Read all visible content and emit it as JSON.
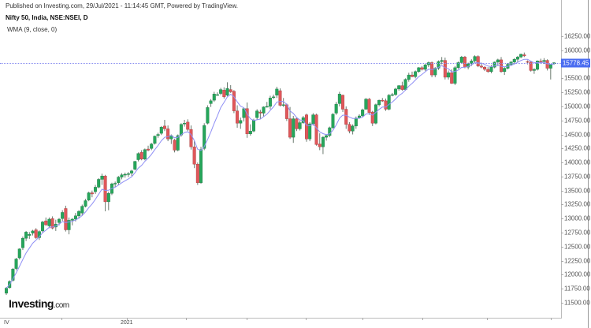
{
  "header": {
    "published": "Published on Investing.com, 29/Jul/2021 - 11:14:45 GMT, Powered by TradingView.",
    "symbol": "Nifty 50, India, NSE:NSEI, D",
    "indicator": "WMA (9, close, 0)"
  },
  "logo": {
    "main": "Investing",
    "suffix": ".com"
  },
  "colors": {
    "up": "#26a65b",
    "down": "#e0575a",
    "wma": "#8f8ff5",
    "price_tag": "#4a6cf0"
  },
  "chart_data": {
    "type": "candlestick",
    "title": "Nifty 50, India, NSE:NSEI, D",
    "indicator": "WMA (9, close, 0)",
    "last_price": 15778.45,
    "ylim": [
      11400,
      16400
    ],
    "y_ticks": [
      16250,
      16000,
      15750,
      15500,
      15250,
      15000,
      14750,
      14500,
      14250,
      14000,
      13750,
      13500,
      13250,
      13000,
      12750,
      12500,
      12250,
      12000,
      11750,
      11500
    ],
    "y_tick_labels": [
      "16250.00",
      "16000.00",
      "15750.00",
      "15500.00",
      "15250.00",
      "15000.00",
      "14750.00",
      "14500.00",
      "14250.00",
      "14000.00",
      "13750.00",
      "13500.00",
      "13250.00",
      "13000.00",
      "12750.00",
      "12500.00",
      "12250.00",
      "12000.00",
      "11750.00",
      "11500.00"
    ],
    "x_labels": [
      {
        "label": "IV",
        "x": 8
      },
      {
        "label": "2021",
        "x": 153
      }
    ],
    "x_ticks": [
      78,
      161,
      236,
      313,
      388,
      460,
      536,
      618,
      699
    ],
    "candles": [
      [
        11670,
        11780,
        11640,
        11760
      ],
      [
        11770,
        11900,
        11750,
        11880
      ],
      [
        11900,
        12120,
        11880,
        12100
      ],
      [
        12110,
        12300,
        12080,
        12280
      ],
      [
        12300,
        12470,
        12270,
        12460
      ],
      [
        12480,
        12680,
        12440,
        12650
      ],
      [
        12650,
        12780,
        12600,
        12760
      ],
      [
        12700,
        12760,
        12640,
        12720
      ],
      [
        12740,
        12800,
        12700,
        12780
      ],
      [
        12800,
        12830,
        12640,
        12660
      ],
      [
        12660,
        12790,
        12620,
        12770
      ],
      [
        12780,
        12960,
        12750,
        12940
      ],
      [
        12960,
        13020,
        12870,
        12890
      ],
      [
        12870,
        13020,
        12830,
        12990
      ],
      [
        13000,
        13040,
        12810,
        12830
      ],
      [
        12850,
        12980,
        12780,
        12900
      ],
      [
        12930,
        13010,
        12880,
        12990
      ],
      [
        13000,
        13150,
        12960,
        13110
      ],
      [
        13180,
        13230,
        12770,
        12800
      ],
      [
        12800,
        13020,
        12720,
        12970
      ],
      [
        12970,
        13010,
        12880,
        12990
      ],
      [
        12990,
        13100,
        12950,
        13050
      ],
      [
        13050,
        13150,
        13000,
        13130
      ],
      [
        13100,
        13250,
        13050,
        13220
      ],
      [
        13220,
        13350,
        13200,
        13320
      ],
      [
        13330,
        13480,
        13310,
        13460
      ],
      [
        13460,
        13500,
        13380,
        13440
      ],
      [
        13480,
        13600,
        13440,
        13560
      ],
      [
        13560,
        13720,
        13540,
        13700
      ],
      [
        13700,
        13800,
        13600,
        13760
      ],
      [
        13760,
        13780,
        13130,
        13300
      ],
      [
        13300,
        13480,
        13150,
        13450
      ],
      [
        13450,
        13640,
        13420,
        13620
      ],
      [
        13620,
        13660,
        13560,
        13630
      ],
      [
        13640,
        13760,
        13600,
        13740
      ],
      [
        13740,
        13810,
        13700,
        13780
      ],
      [
        13780,
        13820,
        13730,
        13790
      ],
      [
        13790,
        13830,
        13740,
        13800
      ],
      [
        13810,
        13870,
        13760,
        13850
      ],
      [
        13880,
        14030,
        13860,
        14020
      ],
      [
        14050,
        14180,
        14020,
        14160
      ],
      [
        14180,
        14220,
        14040,
        14060
      ],
      [
        14060,
        14250,
        14040,
        14230
      ],
      [
        14240,
        14300,
        14200,
        14220
      ],
      [
        14250,
        14350,
        14220,
        14330
      ],
      [
        14340,
        14480,
        14320,
        14470
      ],
      [
        14480,
        14530,
        14440,
        14500
      ],
      [
        14520,
        14650,
        14490,
        14630
      ],
      [
        14650,
        14760,
        14560,
        14600
      ],
      [
        14600,
        14660,
        14380,
        14420
      ],
      [
        14420,
        14500,
        14330,
        14480
      ],
      [
        14400,
        14420,
        14180,
        14220
      ],
      [
        14220,
        14500,
        14200,
        14480
      ],
      [
        14490,
        14700,
        14460,
        14680
      ],
      [
        14690,
        14760,
        14640,
        14700
      ],
      [
        14720,
        14770,
        14560,
        14590
      ],
      [
        14590,
        14660,
        14230,
        14280
      ],
      [
        14280,
        14380,
        13900,
        13970
      ],
      [
        13970,
        14000,
        13600,
        13640
      ],
      [
        13640,
        14280,
        13620,
        14230
      ],
      [
        14250,
        14700,
        14220,
        14660
      ],
      [
        14700,
        15020,
        14680,
        14980
      ],
      [
        15050,
        15130,
        14990,
        15100
      ],
      [
        15110,
        15260,
        15080,
        15220
      ],
      [
        15200,
        15250,
        15190,
        15210
      ],
      [
        15230,
        15330,
        15200,
        15300
      ],
      [
        15290,
        15340,
        15140,
        15170
      ],
      [
        15200,
        15430,
        15180,
        15320
      ],
      [
        15300,
        15380,
        15240,
        15260
      ],
      [
        15270,
        15290,
        14880,
        14920
      ],
      [
        14920,
        15020,
        14620,
        14700
      ],
      [
        14700,
        14800,
        14600,
        14750
      ],
      [
        14800,
        14980,
        14730,
        14960
      ],
      [
        14960,
        15070,
        14440,
        14510
      ],
      [
        14510,
        14680,
        14480,
        14560
      ],
      [
        14560,
        14780,
        14540,
        14750
      ],
      [
        14800,
        14950,
        14760,
        14920
      ],
      [
        14900,
        14940,
        14780,
        14880
      ],
      [
        14880,
        15000,
        14820,
        14990
      ],
      [
        14990,
        15080,
        14980,
        15000
      ],
      [
        15000,
        15190,
        14950,
        15150
      ],
      [
        15160,
        15210,
        15130,
        15170
      ],
      [
        15200,
        15350,
        15150,
        15310
      ],
      [
        15280,
        15320,
        15000,
        15020
      ],
      [
        15020,
        15150,
        14990,
        15030
      ],
      [
        15030,
        15050,
        14740,
        14780
      ],
      [
        14780,
        14990,
        14420,
        14450
      ],
      [
        14450,
        14830,
        14350,
        14780
      ],
      [
        14780,
        14800,
        14560,
        14600
      ],
      [
        14600,
        14750,
        14570,
        14710
      ],
      [
        14710,
        14830,
        14690,
        14800
      ],
      [
        14850,
        14870,
        14370,
        14420
      ],
      [
        14420,
        14720,
        14380,
        14690
      ],
      [
        14690,
        14880,
        14660,
        14850
      ],
      [
        14850,
        14870,
        14300,
        14320
      ],
      [
        14330,
        14520,
        14220,
        14280
      ],
      [
        14280,
        14470,
        14150,
        14450
      ],
      [
        14450,
        14500,
        14390,
        14480
      ],
      [
        14480,
        14640,
        14450,
        14620
      ],
      [
        14620,
        14880,
        14600,
        14860
      ],
      [
        14880,
        15080,
        14850,
        15040
      ],
      [
        15050,
        15260,
        15000,
        15220
      ],
      [
        15200,
        15210,
        14900,
        14950
      ],
      [
        14950,
        15000,
        14600,
        14680
      ],
      [
        14680,
        14720,
        14520,
        14560
      ],
      [
        14560,
        14680,
        14500,
        14650
      ],
      [
        14650,
        14820,
        14600,
        14790
      ],
      [
        14800,
        14860,
        14780,
        14830
      ],
      [
        14830,
        14960,
        14820,
        14940
      ],
      [
        14950,
        15150,
        14940,
        15130
      ],
      [
        15130,
        15150,
        14850,
        14890
      ],
      [
        14900,
        14920,
        14650,
        14700
      ],
      [
        14700,
        15050,
        14680,
        15030
      ],
      [
        15030,
        15120,
        15000,
        15110
      ],
      [
        15110,
        15150,
        15080,
        15100
      ],
      [
        15100,
        15140,
        14920,
        14950
      ],
      [
        14950,
        15220,
        14930,
        15200
      ],
      [
        15200,
        15240,
        15180,
        15210
      ],
      [
        15210,
        15330,
        15190,
        15310
      ],
      [
        15310,
        15380,
        15280,
        15370
      ],
      [
        15370,
        15440,
        15280,
        15300
      ],
      [
        15300,
        15500,
        15280,
        15480
      ],
      [
        15480,
        15600,
        15440,
        15560
      ],
      [
        15560,
        15620,
        15520,
        15530
      ],
      [
        15530,
        15640,
        15500,
        15620
      ],
      [
        15620,
        15700,
        15600,
        15690
      ],
      [
        15690,
        15720,
        15640,
        15660
      ],
      [
        15660,
        15760,
        15630,
        15740
      ],
      [
        15740,
        15800,
        15700,
        15780
      ],
      [
        15780,
        15800,
        15520,
        15560
      ],
      [
        15560,
        15700,
        15520,
        15680
      ],
      [
        15680,
        15820,
        15650,
        15800
      ],
      [
        15800,
        15880,
        15750,
        15820
      ],
      [
        15820,
        15870,
        15480,
        15520
      ],
      [
        15520,
        15640,
        15480,
        15600
      ],
      [
        15600,
        15660,
        15400,
        15410
      ],
      [
        15410,
        15720,
        15380,
        15690
      ],
      [
        15690,
        15800,
        15670,
        15780
      ],
      [
        15780,
        15900,
        15760,
        15880
      ],
      [
        15880,
        15900,
        15680,
        15700
      ],
      [
        15700,
        15780,
        15660,
        15760
      ],
      [
        15760,
        15840,
        15720,
        15810
      ],
      [
        15810,
        15910,
        15780,
        15890
      ],
      [
        15890,
        15910,
        15700,
        15720
      ],
      [
        15720,
        15780,
        15680,
        15700
      ],
      [
        15700,
        15720,
        15630,
        15660
      ],
      [
        15660,
        15700,
        15600,
        15620
      ],
      [
        15620,
        15740,
        15590,
        15700
      ],
      [
        15700,
        15800,
        15680,
        15790
      ],
      [
        15790,
        15850,
        15720,
        15830
      ],
      [
        15830,
        15880,
        15600,
        15620
      ],
      [
        15620,
        15700,
        15560,
        15680
      ],
      [
        15680,
        15770,
        15660,
        15750
      ],
      [
        15750,
        15810,
        15720,
        15790
      ],
      [
        15790,
        15860,
        15760,
        15840
      ],
      [
        15840,
        15900,
        15790,
        15880
      ],
      [
        15880,
        15940,
        15860,
        15930
      ],
      [
        15920,
        15960,
        15880,
        15900
      ],
      [
        15800,
        15820,
        15750,
        15790
      ],
      [
        15790,
        15800,
        15620,
        15640
      ],
      [
        15640,
        15680,
        15580,
        15660
      ],
      [
        15660,
        15820,
        15640,
        15810
      ],
      [
        15810,
        15850,
        15780,
        15800
      ],
      [
        15800,
        15860,
        15760,
        15820
      ],
      [
        15820,
        15840,
        15640,
        15680
      ],
      [
        15680,
        15700,
        15480,
        15750
      ],
      [
        15760,
        15790,
        15740,
        15778
      ]
    ]
  }
}
